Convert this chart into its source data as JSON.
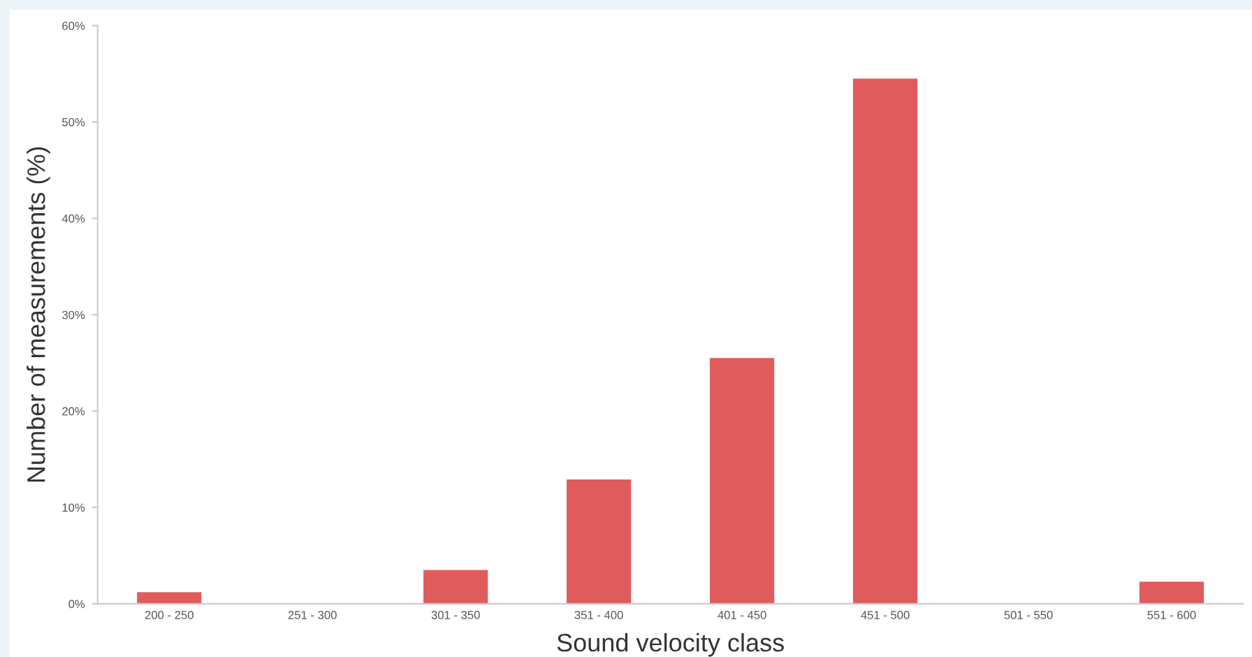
{
  "chart_data": {
    "type": "bar",
    "xlabel": "Sound velocity class",
    "ylabel": "Number of measurements (%)",
    "categories": [
      "200 - 250",
      "251 - 300",
      "301 - 350",
      "351 - 400",
      "401 - 450",
      "451 - 500",
      "501 - 550",
      "551 - 600"
    ],
    "values": [
      1.2,
      0,
      3.5,
      12.9,
      25.5,
      54.5,
      0,
      2.3
    ],
    "color": "#e05c5c",
    "ylim": [
      0,
      60
    ],
    "yticks": [
      {
        "value": 0,
        "label": "0%"
      },
      {
        "value": 10,
        "label": "10%"
      },
      {
        "value": 20,
        "label": "20%"
      },
      {
        "value": 30,
        "label": "30%"
      },
      {
        "value": 40,
        "label": "40%"
      },
      {
        "value": 50,
        "label": "50%"
      },
      {
        "value": 60,
        "label": "60%"
      }
    ],
    "grid": false,
    "legend": false
  }
}
